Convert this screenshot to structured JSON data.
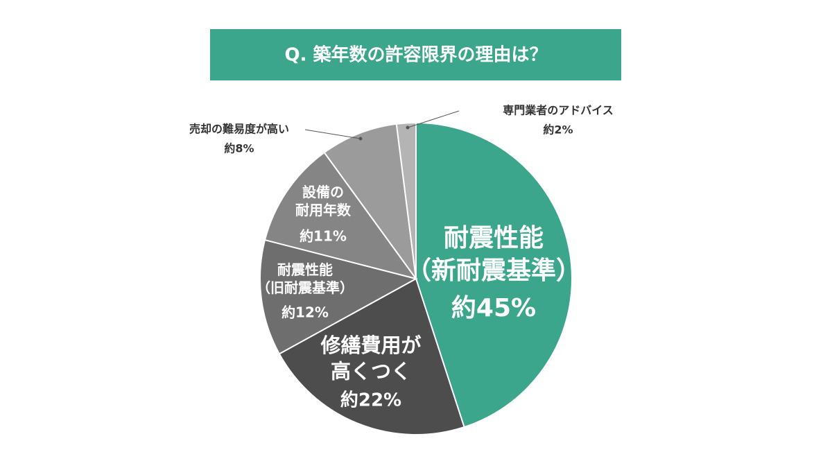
{
  "chart_data": {
    "type": "pie",
    "title": "Q. 築年数の許容限界の理由は？",
    "categories": [
      "耐震性能\n（新耐震基準）",
      "修繕費用が\n高くつく",
      "耐震性能\n（旧耐震基準）",
      "設備の\n耐用年数",
      "売却の難易度が高い",
      "専門業者のアドバイス"
    ],
    "values": [
      45,
      22,
      12,
      11,
      8,
      2
    ],
    "value_labels": [
      "約45%",
      "約22%",
      "約12%",
      "約11%",
      "約8%",
      "約2%"
    ],
    "colors": [
      "#3ba68b",
      "#4d4d4d",
      "#6e6e6e",
      "#858585",
      "#9b9b9b",
      "#b4b4b4"
    ],
    "title_color": "#3ba68b"
  }
}
